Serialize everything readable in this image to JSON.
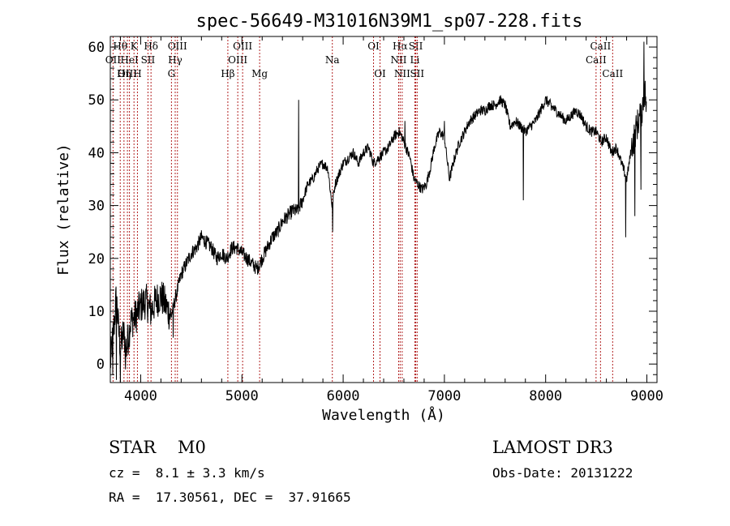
{
  "chart_data": {
    "type": "line",
    "title": "spec-56649-M31016N39M1_sp07-228.fits",
    "xlabel": "Wavelength (Å)",
    "ylabel": "Flux (relative)",
    "xlim": [
      3700,
      9100
    ],
    "ylim": [
      -3.5,
      62
    ],
    "xticks": [
      4000,
      5000,
      6000,
      7000,
      8000,
      9000
    ],
    "yticks": [
      0,
      10,
      20,
      30,
      40,
      50,
      60
    ],
    "line_color": "#000000",
    "marker_color": "#b22222",
    "spectral_lines": [
      {
        "wl": 3727,
        "label": "OII",
        "row": 1
      },
      {
        "wl": 3798,
        "label": "Hθ",
        "row": 0
      },
      {
        "wl": 3835,
        "label": "Hη",
        "row": 2
      },
      {
        "wl": 3869,
        "label": "OIII",
        "row": 2
      },
      {
        "wl": 3889,
        "label": "HeI",
        "row": 1
      },
      {
        "wl": 3934,
        "label": "K",
        "row": 0
      },
      {
        "wl": 3968,
        "label": "H",
        "row": 2
      },
      {
        "wl": 4072,
        "label": "SII",
        "row": 1
      },
      {
        "wl": 4102,
        "label": "Hδ",
        "row": 0
      },
      {
        "wl": 4304,
        "label": "G",
        "row": 2
      },
      {
        "wl": 4341,
        "label": "Hγ",
        "row": 1
      },
      {
        "wl": 4363,
        "label": "OIII",
        "row": 0
      },
      {
        "wl": 4861,
        "label": "Hβ",
        "row": 2
      },
      {
        "wl": 4959,
        "label": "OIII",
        "row": 1
      },
      {
        "wl": 5007,
        "label": "OIII",
        "row": 0
      },
      {
        "wl": 5175,
        "label": "Mg",
        "row": 2
      },
      {
        "wl": 5893,
        "label": "Na",
        "row": 1
      },
      {
        "wl": 6300,
        "label": "OI",
        "row": 0
      },
      {
        "wl": 6364,
        "label": "OI",
        "row": 2
      },
      {
        "wl": 6548,
        "label": "NII",
        "row": 1
      },
      {
        "wl": 6563,
        "label": "Hα",
        "row": 0
      },
      {
        "wl": 6583,
        "label": "NII",
        "row": 2
      },
      {
        "wl": 6708,
        "label": "Li",
        "row": 1
      },
      {
        "wl": 6717,
        "label": "SII",
        "row": 0
      },
      {
        "wl": 6731,
        "label": "SII",
        "row": 2
      },
      {
        "wl": 8498,
        "label": "CaII",
        "row": 1
      },
      {
        "wl": 8542,
        "label": "CaII",
        "row": 0
      },
      {
        "wl": 8662,
        "label": "CaII",
        "row": 2
      }
    ],
    "spectrum_anchors": [
      [
        3700,
        0
      ],
      [
        3740,
        8
      ],
      [
        3760,
        13
      ],
      [
        3780,
        7
      ],
      [
        3800,
        3
      ],
      [
        3830,
        6
      ],
      [
        3860,
        3
      ],
      [
        3900,
        8
      ],
      [
        3950,
        9
      ],
      [
        4000,
        11
      ],
      [
        4050,
        12
      ],
      [
        4100,
        10
      ],
      [
        4150,
        12
      ],
      [
        4200,
        13
      ],
      [
        4250,
        11
      ],
      [
        4300,
        9
      ],
      [
        4350,
        13
      ],
      [
        4400,
        17
      ],
      [
        4450,
        19
      ],
      [
        4500,
        21
      ],
      [
        4550,
        22
      ],
      [
        4600,
        24
      ],
      [
        4650,
        23
      ],
      [
        4700,
        22
      ],
      [
        4750,
        20
      ],
      [
        4800,
        21
      ],
      [
        4850,
        20
      ],
      [
        4900,
        22
      ],
      [
        4950,
        22
      ],
      [
        5000,
        21
      ],
      [
        5050,
        20
      ],
      [
        5100,
        19
      ],
      [
        5150,
        18
      ],
      [
        5200,
        20
      ],
      [
        5250,
        22
      ],
      [
        5300,
        24
      ],
      [
        5350,
        25
      ],
      [
        5400,
        27
      ],
      [
        5450,
        28
      ],
      [
        5500,
        29
      ],
      [
        5550,
        29
      ],
      [
        5600,
        31
      ],
      [
        5650,
        34
      ],
      [
        5700,
        35
      ],
      [
        5750,
        37
      ],
      [
        5800,
        38
      ],
      [
        5850,
        37
      ],
      [
        5890,
        30
      ],
      [
        5920,
        34
      ],
      [
        5960,
        36
      ],
      [
        6000,
        38
      ],
      [
        6050,
        39
      ],
      [
        6100,
        40
      ],
      [
        6150,
        38
      ],
      [
        6200,
        40
      ],
      [
        6250,
        41
      ],
      [
        6300,
        38
      ],
      [
        6350,
        39
      ],
      [
        6400,
        40
      ],
      [
        6450,
        41
      ],
      [
        6500,
        43
      ],
      [
        6550,
        44
      ],
      [
        6580,
        43
      ],
      [
        6620,
        41
      ],
      [
        6660,
        39
      ],
      [
        6700,
        35
      ],
      [
        6740,
        34
      ],
      [
        6780,
        33
      ],
      [
        6820,
        34
      ],
      [
        6860,
        37
      ],
      [
        6900,
        41
      ],
      [
        6950,
        44
      ],
      [
        7000,
        43
      ],
      [
        7050,
        35
      ],
      [
        7100,
        39
      ],
      [
        7150,
        42
      ],
      [
        7200,
        44
      ],
      [
        7250,
        46
      ],
      [
        7300,
        47
      ],
      [
        7350,
        48
      ],
      [
        7400,
        48
      ],
      [
        7450,
        49
      ],
      [
        7500,
        49
      ],
      [
        7550,
        50
      ],
      [
        7600,
        49
      ],
      [
        7650,
        45
      ],
      [
        7700,
        46
      ],
      [
        7750,
        45
      ],
      [
        7800,
        44
      ],
      [
        7850,
        45
      ],
      [
        7900,
        46
      ],
      [
        7950,
        48
      ],
      [
        8000,
        50
      ],
      [
        8050,
        49
      ],
      [
        8100,
        48
      ],
      [
        8150,
        47
      ],
      [
        8200,
        46
      ],
      [
        8250,
        47
      ],
      [
        8300,
        48
      ],
      [
        8350,
        47
      ],
      [
        8400,
        45
      ],
      [
        8450,
        44
      ],
      [
        8500,
        44
      ],
      [
        8550,
        42
      ],
      [
        8600,
        43
      ],
      [
        8650,
        40
      ],
      [
        8700,
        41
      ],
      [
        8750,
        38
      ],
      [
        8800,
        35
      ],
      [
        8850,
        41
      ],
      [
        8900,
        45
      ],
      [
        8950,
        48
      ],
      [
        8980,
        52
      ],
      [
        9000,
        47
      ]
    ],
    "spikes": [
      [
        3725,
        -2
      ],
      [
        3760,
        -3
      ],
      [
        3800,
        -4
      ],
      [
        3850,
        -1
      ],
      [
        4320,
        5
      ],
      [
        5560,
        50
      ],
      [
        5895,
        25
      ],
      [
        6610,
        46
      ],
      [
        7000,
        46
      ],
      [
        7780,
        31
      ],
      [
        8055,
        48
      ],
      [
        8790,
        24
      ],
      [
        8880,
        28
      ],
      [
        8970,
        61
      ],
      [
        8940,
        33
      ]
    ]
  },
  "info": {
    "object_class": "STAR",
    "subclass": "M0",
    "redshift": "cz =  8.1 ± 3.3 km/s",
    "coords": "RA =  17.30561, DEC =  37.91665",
    "survey": "LAMOST DR3",
    "obs_date": "Obs-Date: 20131222"
  }
}
